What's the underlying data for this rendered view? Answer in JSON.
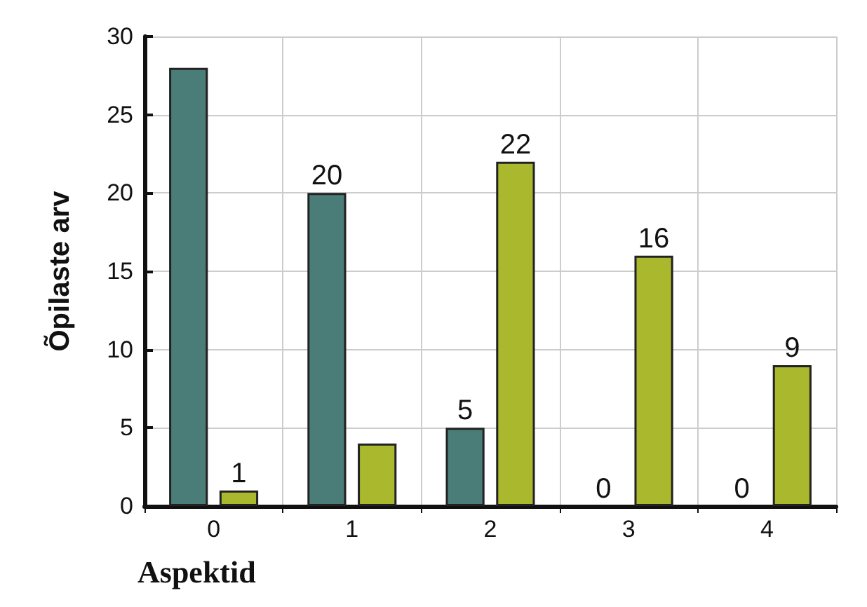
{
  "chart_data": {
    "type": "bar",
    "xlabel": "Aspektid",
    "ylabel": "Õpilaste arv",
    "categories": [
      "0",
      "1",
      "2",
      "3",
      "4"
    ],
    "series": [
      {
        "color": "#4a7d78",
        "values": [
          28,
          20,
          5,
          0,
          0
        ],
        "value_labels": [
          null,
          "20",
          "5",
          "0",
          "0"
        ]
      },
      {
        "color": "#a9b82c",
        "values": [
          1,
          4,
          22,
          16,
          9
        ],
        "value_labels": [
          "1",
          null,
          "22",
          "16",
          "9"
        ]
      }
    ],
    "ylim": [
      0,
      30
    ],
    "yticks": [
      0,
      5,
      10,
      15,
      20,
      25,
      30
    ],
    "grid": true
  }
}
